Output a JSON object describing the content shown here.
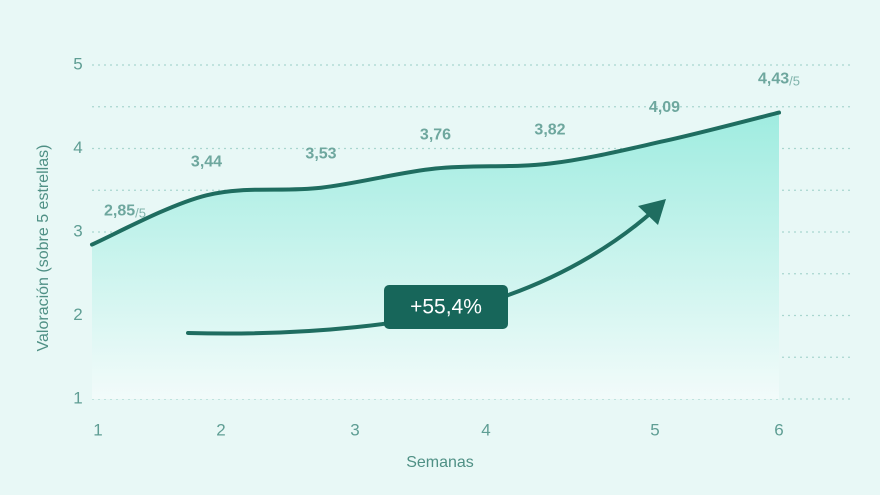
{
  "chart_data": {
    "type": "area",
    "x_label": "Semanas",
    "y_label": "Valoración (sobre 5 estrellas)",
    "xticks": [
      1,
      2,
      3,
      4,
      5,
      6
    ],
    "ylim": [
      1,
      5
    ],
    "yticks": [
      1,
      2,
      3,
      4,
      5
    ],
    "grid": true,
    "categories": [
      null,
      null,
      null,
      null,
      null,
      null,
      null
    ],
    "series": [
      {
        "name": null,
        "color": "#1f6d60",
        "values": [
          2.85,
          3.44,
          3.53,
          3.76,
          3.82,
          4.09,
          4.43
        ],
        "value_labels": [
          "2,85",
          "3,44",
          "3,53",
          "3,76",
          "3,82",
          "4,09",
          "4,43"
        ]
      }
    ],
    "label_suffix": "/5",
    "annotation": "+55,4%"
  }
}
